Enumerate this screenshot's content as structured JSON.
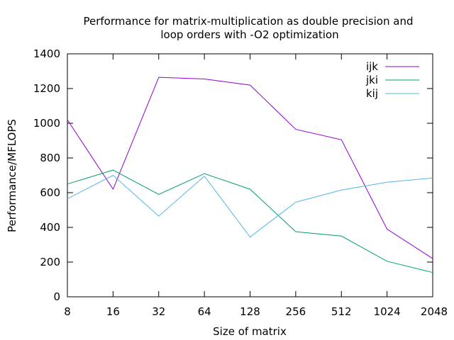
{
  "chart_data": {
    "type": "line",
    "title_lines": [
      "Performance for matrix-multiplication as double precision and",
      "loop orders with -O2 optimization"
    ],
    "xlabel": "Size of matrix",
    "ylabel": "Performance/MFLOPS",
    "categories": [
      "8",
      "16",
      "32",
      "64",
      "128",
      "256",
      "512",
      "1024",
      "2048"
    ],
    "ylim": [
      0,
      1400
    ],
    "yticks": [
      0,
      200,
      400,
      600,
      800,
      1000,
      1200,
      1400
    ],
    "grid": false,
    "legend_position": "top-right",
    "series": [
      {
        "name": "ijk",
        "color": "#9400d3",
        "values": [
          1020,
          620,
          1265,
          1255,
          1220,
          965,
          905,
          390,
          220
        ]
      },
      {
        "name": "jki",
        "color": "#009e73",
        "values": [
          650,
          730,
          590,
          710,
          620,
          375,
          350,
          205,
          140
        ]
      },
      {
        "name": "kij",
        "color": "#56b4e9",
        "values": [
          565,
          700,
          465,
          695,
          345,
          545,
          615,
          660,
          685
        ]
      }
    ]
  }
}
